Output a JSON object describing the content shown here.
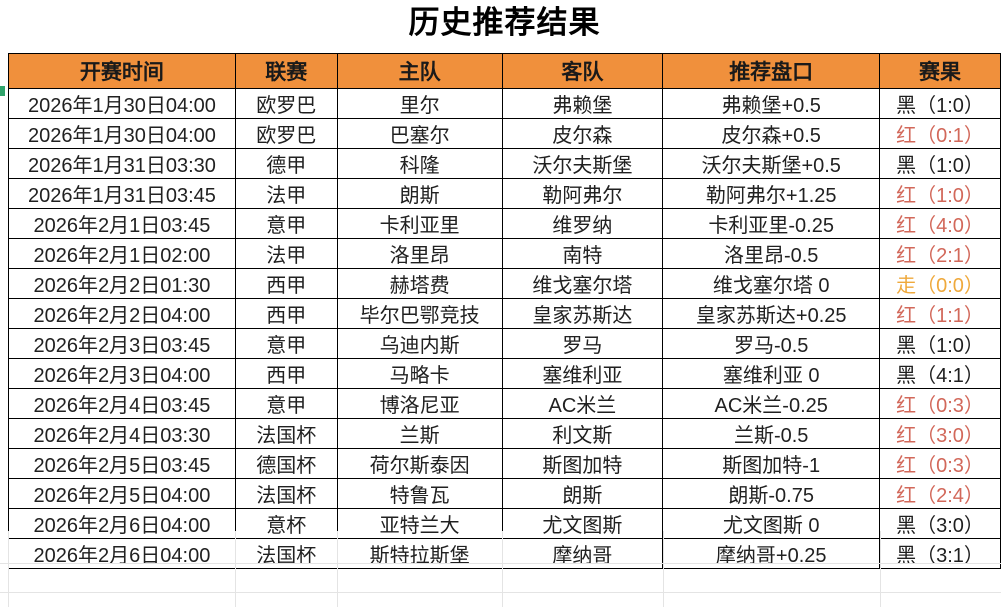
{
  "title": "历史推荐结果",
  "table": {
    "headers": [
      "开赛时间",
      "联赛",
      "主队",
      "客队",
      "推荐盘口",
      "赛果"
    ],
    "rows": [
      {
        "time": "2026年1月30日04:00",
        "league": "欧罗巴",
        "home": "里尔",
        "away": "弗赖堡",
        "handicap": "弗赖堡+0.5",
        "result": "黑（1:0）",
        "result_type": "black"
      },
      {
        "time": "2026年1月30日04:00",
        "league": "欧罗巴",
        "home": "巴塞尔",
        "away": "皮尔森",
        "handicap": "皮尔森+0.5",
        "result": "红（0:1）",
        "result_type": "red"
      },
      {
        "time": "2026年1月31日03:30",
        "league": "德甲",
        "home": "科隆",
        "away": "沃尔夫斯堡",
        "handicap": "沃尔夫斯堡+0.5",
        "result": "黑（1:0）",
        "result_type": "black"
      },
      {
        "time": "2026年1月31日03:45",
        "league": "法甲",
        "home": "朗斯",
        "away": "勒阿弗尔",
        "handicap": "勒阿弗尔+1.25",
        "result": "红（1:0）",
        "result_type": "red"
      },
      {
        "time": "2026年2月1日03:45",
        "league": "意甲",
        "home": "卡利亚里",
        "away": "维罗纳",
        "handicap": "卡利亚里-0.25",
        "result": "红（4:0）",
        "result_type": "red"
      },
      {
        "time": "2026年2月1日02:00",
        "league": "法甲",
        "home": "洛里昂",
        "away": "南特",
        "handicap": "洛里昂-0.5",
        "result": "红（2:1）",
        "result_type": "red"
      },
      {
        "time": "2026年2月2日01:30",
        "league": "西甲",
        "home": "赫塔费",
        "away": "维戈塞尔塔",
        "handicap": "维戈塞尔塔 0",
        "result": "走（0:0）",
        "result_type": "push"
      },
      {
        "time": "2026年2月2日04:00",
        "league": "西甲",
        "home": "毕尔巴鄂竞技",
        "away": "皇家苏斯达",
        "handicap": "皇家苏斯达+0.25",
        "result": "红（1:1）",
        "result_type": "red"
      },
      {
        "time": "2026年2月3日03:45",
        "league": "意甲",
        "home": "乌迪内斯",
        "away": "罗马",
        "handicap": "罗马-0.5",
        "result": "黑（1:0）",
        "result_type": "black"
      },
      {
        "time": "2026年2月3日04:00",
        "league": "西甲",
        "home": "马略卡",
        "away": "塞维利亚",
        "handicap": "塞维利亚 0",
        "result": "黑（4:1）",
        "result_type": "black"
      },
      {
        "time": "2026年2月4日03:45",
        "league": "意甲",
        "home": "博洛尼亚",
        "away": "AC米兰",
        "handicap": "AC米兰-0.25",
        "result": "红（0:3）",
        "result_type": "red"
      },
      {
        "time": "2026年2月4日03:30",
        "league": "法国杯",
        "home": "兰斯",
        "away": "利文斯",
        "handicap": "兰斯-0.5",
        "result": "红（3:0）",
        "result_type": "red"
      },
      {
        "time": "2026年2月5日03:45",
        "league": "德国杯",
        "home": "荷尔斯泰因",
        "away": "斯图加特",
        "handicap": "斯图加特-1",
        "result": "红（0:3）",
        "result_type": "red"
      },
      {
        "time": "2026年2月5日04:00",
        "league": "法国杯",
        "home": "特鲁瓦",
        "away": "朗斯",
        "handicap": "朗斯-0.75",
        "result": "红（2:4）",
        "result_type": "red"
      },
      {
        "time": "2026年2月6日04:00",
        "league": "意杯",
        "home": "亚特兰大",
        "away": "尤文图斯",
        "handicap": "尤文图斯 0",
        "result": "黑（3:0）",
        "result_type": "black"
      },
      {
        "time": "2026年2月6日04:00",
        "league": "法国杯",
        "home": "斯特拉斯堡",
        "away": "摩纳哥",
        "handicap": "摩纳哥+0.25",
        "result": "黑（3:1）",
        "result_type": "black"
      }
    ]
  },
  "colors": {
    "header_bg": "#F0903C",
    "result_black": "#1F1F1F",
    "result_red": "#D2685A",
    "result_push": "#EFA93C",
    "border": "#000000",
    "gridline": "#E4E4E4",
    "row_marker_green": "#2FA36B"
  }
}
